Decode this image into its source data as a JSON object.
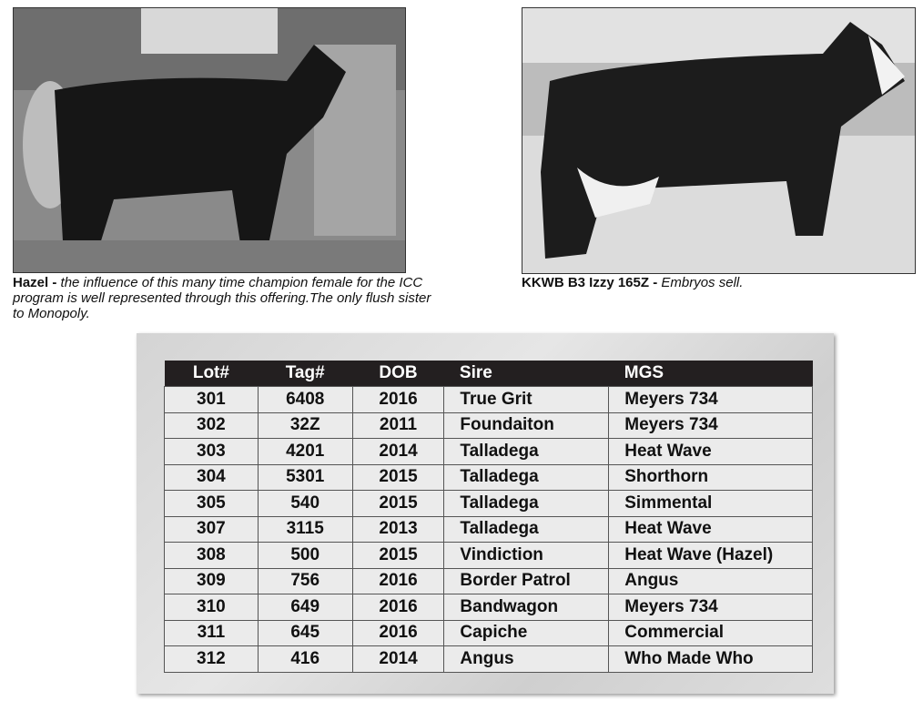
{
  "photos": [
    {
      "caption_name": "Hazel -",
      "caption_text": "the influence of this many time champion female for the ICC program is well represented through this offering.The only flush sister to Monopoly."
    },
    {
      "caption_name": "KKWB B3 Izzy 165Z -",
      "caption_text": "Embryos sell."
    }
  ],
  "table": {
    "columns": [
      "Lot#",
      "Tag#",
      "DOB",
      "Sire",
      "MGS"
    ],
    "rows": [
      [
        "301",
        "6408",
        "2016",
        "True Grit",
        "Meyers 734"
      ],
      [
        "302",
        "32Z",
        "2011",
        "Foundaiton",
        "Meyers 734"
      ],
      [
        "303",
        "4201",
        "2014",
        "Talladega",
        "Heat Wave"
      ],
      [
        "304",
        "5301",
        "2015",
        "Talladega",
        "Shorthorn"
      ],
      [
        "305",
        "540",
        "2015",
        "Talladega",
        "Simmental"
      ],
      [
        "307",
        "3115",
        "2013",
        "Talladega",
        "Heat Wave"
      ],
      [
        "308",
        "500",
        "2015",
        "Vindiction",
        "Heat Wave (Hazel)"
      ],
      [
        "309",
        "756",
        "2016",
        "Border Patrol",
        "Angus"
      ],
      [
        "310",
        "649",
        "2016",
        "Bandwagon",
        "Meyers 734"
      ],
      [
        "311",
        "645",
        "2016",
        "Capiche",
        "Commercial"
      ],
      [
        "312",
        "416",
        "2014",
        "Angus",
        "Who Made Who"
      ]
    ]
  }
}
